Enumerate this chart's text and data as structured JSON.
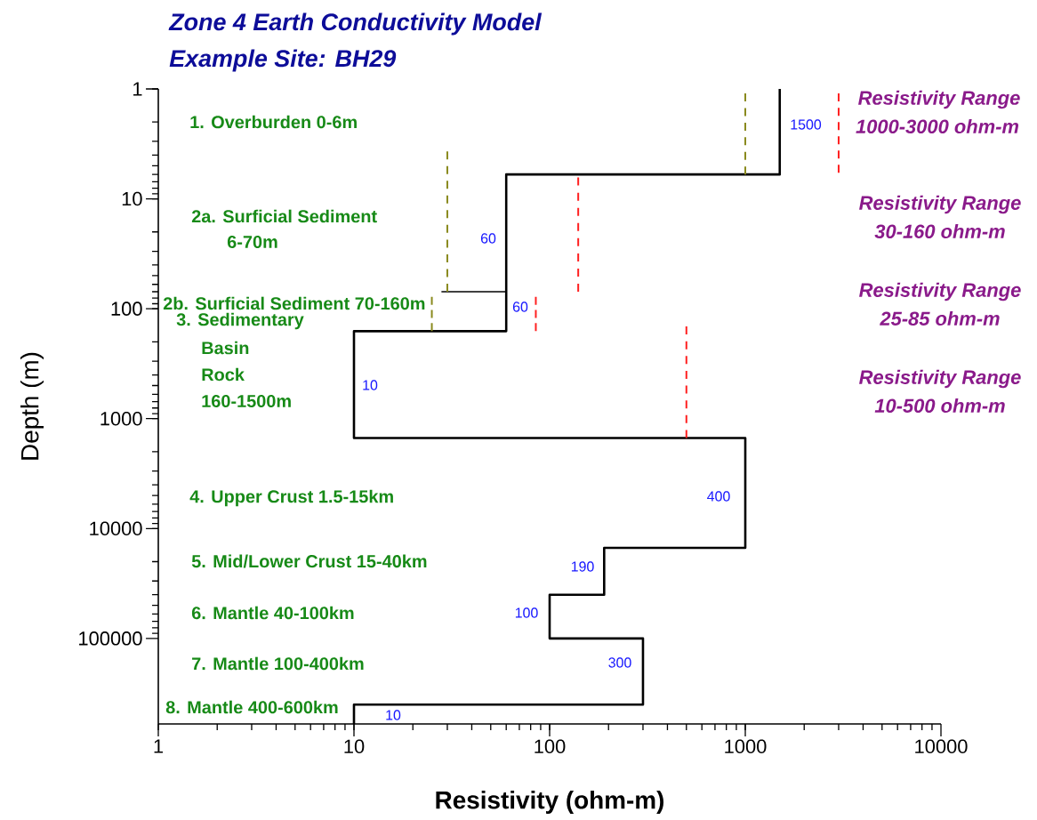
{
  "chart_data": {
    "type": "line",
    "title": "Zone 4 Earth Conductivity Model",
    "subtitle": "Example Site: BH29",
    "xlabel": "Resistivity (ohm-m)",
    "ylabel": "Depth (m)",
    "log": "xy",
    "grid": false,
    "marker": "none",
    "xlim": [
      1,
      10000
    ],
    "ylim": [
      600000,
      1
    ],
    "xticks": [
      1,
      10,
      100,
      1000,
      10000
    ],
    "yticks": [
      1,
      10,
      100,
      1000,
      10000,
      100000
    ],
    "series": [
      {
        "x": [
          1500,
          1500,
          60,
          60,
          10,
          10,
          1000,
          1000,
          190,
          190,
          100,
          100,
          300,
          300,
          10,
          10
        ],
        "values": [
          1,
          6,
          6,
          160,
          160,
          1500,
          1500,
          15000,
          15000,
          40000,
          40000,
          100000,
          100000,
          400000,
          400000,
          600000
        ],
        "color": "#000000",
        "line_style": "solid"
      },
      {
        "x": [
          28,
          60
        ],
        "values": [
          70,
          70
        ],
        "color": "#000000",
        "line_style": "solid"
      },
      {
        "x": [
          1000,
          1000
        ],
        "values": [
          1.1,
          6
        ],
        "color": "#8a8a1e",
        "line_style": "dashed"
      },
      {
        "x": [
          3000,
          3000
        ],
        "values": [
          1.1,
          5.8
        ],
        "color": "#ff2020",
        "line_style": "dashed"
      },
      {
        "x": [
          30,
          30
        ],
        "values": [
          3.7,
          70
        ],
        "color": "#8a8a1e",
        "line_style": "dashed"
      },
      {
        "x": [
          140,
          140
        ],
        "values": [
          6.4,
          70
        ],
        "color": "#ff2020",
        "line_style": "dashed"
      },
      {
        "x": [
          25,
          25
        ],
        "values": [
          78,
          160
        ],
        "color": "#8a8a1e",
        "line_style": "dashed"
      },
      {
        "x": [
          85,
          85
        ],
        "values": [
          78,
          160
        ],
        "color": "#ff2020",
        "line_style": "dashed"
      },
      {
        "x": [
          500,
          500
        ],
        "values": [
          145,
          1500
        ],
        "color": "#ff2020",
        "line_style": "dashed"
      }
    ],
    "annotations": [
      "1. Overburden 0-6m",
      "2a. Surficial Sediment",
      "6-70m",
      "2b. Surficial Sediment 70-160m",
      "3. Sedimentary",
      "Basin",
      "Rock",
      "160-1500m",
      "4. Upper Crust 1.5-15km",
      "5. Mid/Lower Crust 15-40km",
      "6. Mantle 40-100km",
      "7. Mantle 100-400km",
      "8. Mantle 400-600km",
      "1500",
      "60",
      "60",
      "10",
      "400",
      "190",
      "100",
      "300",
      "10",
      "Resistivity Range",
      "1000-3000 ohm-m",
      "Resistivity Range",
      "30-160 ohm-m",
      "Resistivity Range",
      "25-85 ohm-m",
      "Resistivity Range",
      "10-500 ohm-m"
    ]
  }
}
